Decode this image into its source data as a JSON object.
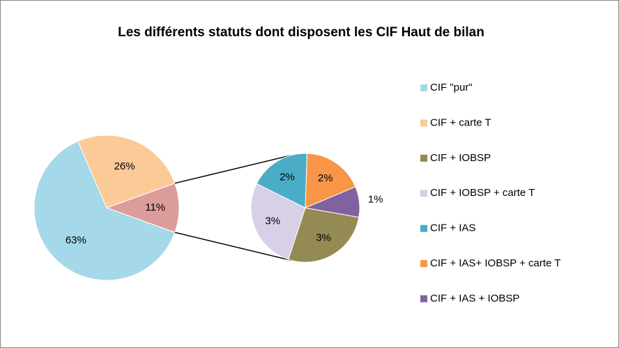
{
  "chart_data": {
    "type": "pie",
    "title": "Les différents statuts dont disposent les CIF Haut de bilan",
    "categories": [
      "CIF \"pur\"",
      "CIF + carte T",
      "CIF + IOBSP",
      "CIF + IOBSP + carte T",
      "CIF + IAS",
      "CIF + IAS+ IOBSP + carte T",
      "CIF + IAS + IOBSP"
    ],
    "values": [
      63,
      26,
      3,
      3,
      2,
      2,
      1
    ],
    "value_labels": [
      "63%",
      "26%",
      "3%",
      "3%",
      "2%",
      "2%",
      "1%"
    ],
    "colors": [
      "#a5d8e8",
      "#fbca97",
      "#948a54",
      "#d7d0e6",
      "#4bacc6",
      "#f79646",
      "#7f63a1"
    ],
    "secondary_from": 2,
    "other_value": 11,
    "other_label": "11%",
    "other_color": "#dc9c9b",
    "legend": "right"
  }
}
